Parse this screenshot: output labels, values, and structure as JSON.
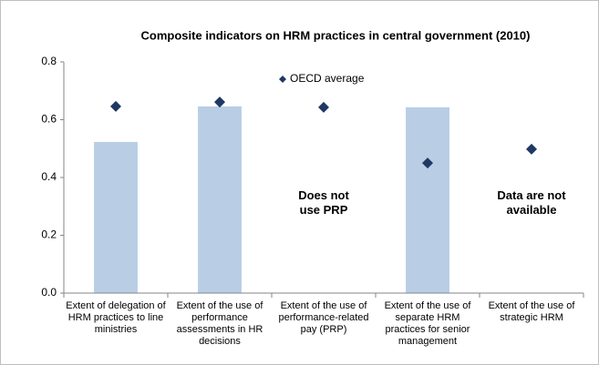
{
  "chart_data": {
    "type": "bar",
    "title": "Composite indicators on HRM practices in central government (2010)",
    "categories": [
      "Extent of delegation of HRM practices to line ministries",
      "Extent of the use of performance assessments in HR decisions",
      "Extent of the use of performance-related pay (PRP)",
      "Extent of the use of separate HRM practices for senior management",
      "Extent of the use of strategic HRM"
    ],
    "values": [
      0.523,
      0.646,
      null,
      0.643,
      null
    ],
    "color": "#b9cde5",
    "series": [
      {
        "name": "OECD average",
        "type": "scatter",
        "color": "#1f3864",
        "values": [
          0.646,
          0.661,
          0.643,
          0.45,
          0.498
        ]
      }
    ],
    "annotations": [
      {
        "text": "Does not use PRP",
        "category": 2
      },
      {
        "text": "Data are not available",
        "category": 4
      }
    ],
    "ylim": [
      0,
      0.8
    ],
    "yticks": [
      {
        "value": 0,
        "label": "0.0"
      },
      0.2,
      0.4,
      0.6,
      0.8
    ],
    "grid": false
  }
}
